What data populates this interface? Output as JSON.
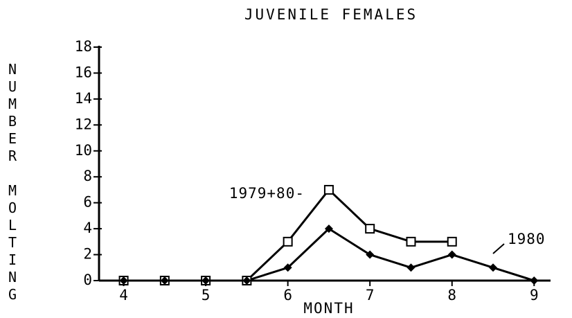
{
  "chart_data": {
    "type": "line",
    "title": "JUVENILE FEMALES",
    "xlabel": "MONTH",
    "ylabel": "NUMBER MOLTING",
    "xlim": [
      3.7,
      9.2
    ],
    "xticks": [
      4,
      5,
      6,
      7,
      8,
      9
    ],
    "ylim": [
      0,
      18
    ],
    "yticks": [
      0,
      2,
      4,
      6,
      8,
      10,
      12,
      14,
      16,
      18
    ],
    "series": [
      {
        "name": "1979+80-",
        "color": "#000000",
        "marker": "square",
        "x": [
          4,
          4.5,
          5,
          5.5,
          6,
          6.5,
          7,
          7.5,
          8
        ],
        "values": [
          0,
          0,
          0,
          0,
          3,
          7,
          4,
          3,
          3
        ]
      },
      {
        "name": "1980",
        "color": "#000000",
        "marker": "diamond",
        "x": [
          4,
          4.5,
          5,
          5.5,
          6,
          6.5,
          7,
          7.5,
          8,
          8.5,
          9
        ],
        "values": [
          0,
          0,
          0,
          0,
          1,
          4,
          2,
          1,
          2,
          1,
          0
        ]
      }
    ]
  }
}
